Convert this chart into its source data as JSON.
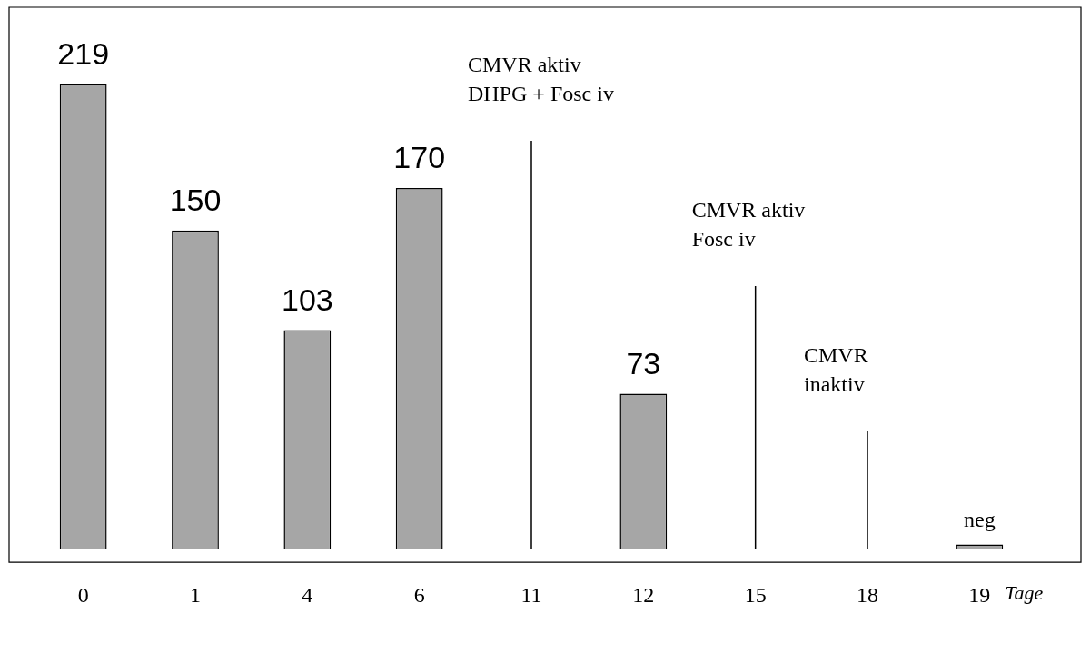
{
  "chart_data": {
    "type": "bar",
    "xlabel": "Tage",
    "categories": [
      "0",
      "1",
      "4",
      "6",
      "11",
      "12",
      "15",
      "18",
      "19"
    ],
    "values": [
      219,
      150,
      103,
      170,
      null,
      73,
      null,
      null,
      2
    ],
    "value_labels": [
      "219",
      "150",
      "103",
      "170",
      null,
      "73",
      null,
      null,
      "neg"
    ],
    "color": "#a6a6a6",
    "ref_lines": [
      {
        "axis": "x",
        "value": "11",
        "color": "#000000",
        "label": "CMVR aktiv\nDHPG + Fosc iv"
      },
      {
        "axis": "x",
        "value": "15",
        "color": "#000000",
        "label": "CMVR aktiv\nFosc iv"
      },
      {
        "axis": "x",
        "value": "18",
        "color": "#000000",
        "label": "CMVR\ninaktiv"
      }
    ],
    "tick_labels": "x",
    "grid": false,
    "legend": false
  }
}
